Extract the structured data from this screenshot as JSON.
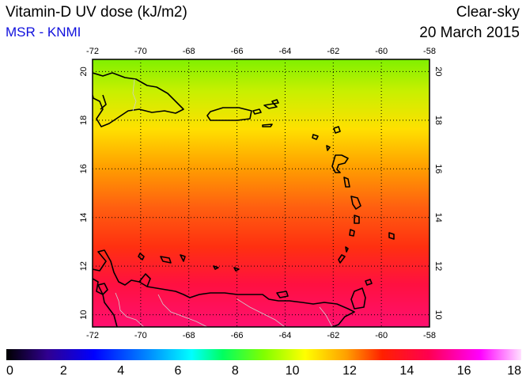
{
  "header": {
    "title": "Vitamin-D UV dose (kJ/m2)",
    "source": "MSR - KNMI",
    "condition": "Clear-sky",
    "date": "20 March 2015"
  },
  "map": {
    "lon_range": [
      -72,
      -58
    ],
    "lat_range": [
      9.5,
      20.5
    ],
    "lon_ticks": [
      "-72",
      "-70",
      "-68",
      "-66",
      "-64",
      "-62",
      "-60",
      "-58"
    ],
    "lat_ticks": [
      "10",
      "12",
      "14",
      "16",
      "18",
      "20"
    ],
    "grid": "dotted"
  },
  "colorbar": {
    "labels": [
      "0",
      "2",
      "4",
      "6",
      "8",
      "10",
      "12",
      "14",
      "16",
      "18"
    ],
    "range": [
      0,
      18
    ],
    "colors": [
      "#000000",
      "#3000a0",
      "#0000ff",
      "#0090ff",
      "#00ffff",
      "#00ff60",
      "#80ff00",
      "#ffff00",
      "#ffa000",
      "#ff2000",
      "#ff0050",
      "#ff00ff",
      "#ffd0ff"
    ]
  }
}
